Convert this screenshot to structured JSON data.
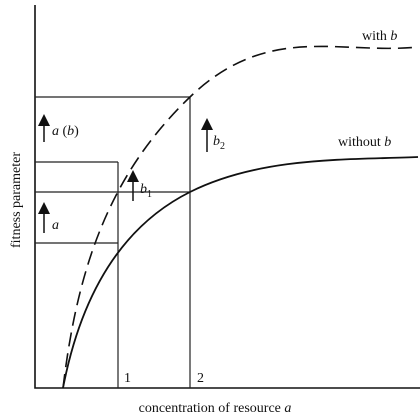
{
  "axes": {
    "y_label": "fitness parameter",
    "x_label": [
      "concentration of resource ",
      "a"
    ]
  },
  "curves": [
    {
      "label": [
        "with ",
        "b"
      ]
    },
    {
      "label": [
        "without ",
        "b"
      ]
    }
  ],
  "arrows": [
    {
      "label": [
        "a",
        " (",
        "b",
        ")"
      ]
    },
    {
      "label": [
        "a"
      ]
    },
    {
      "label": [
        "b",
        "1"
      ]
    },
    {
      "label": [
        "b",
        "2"
      ]
    }
  ],
  "concentrations": [
    "1",
    "2"
  ]
}
